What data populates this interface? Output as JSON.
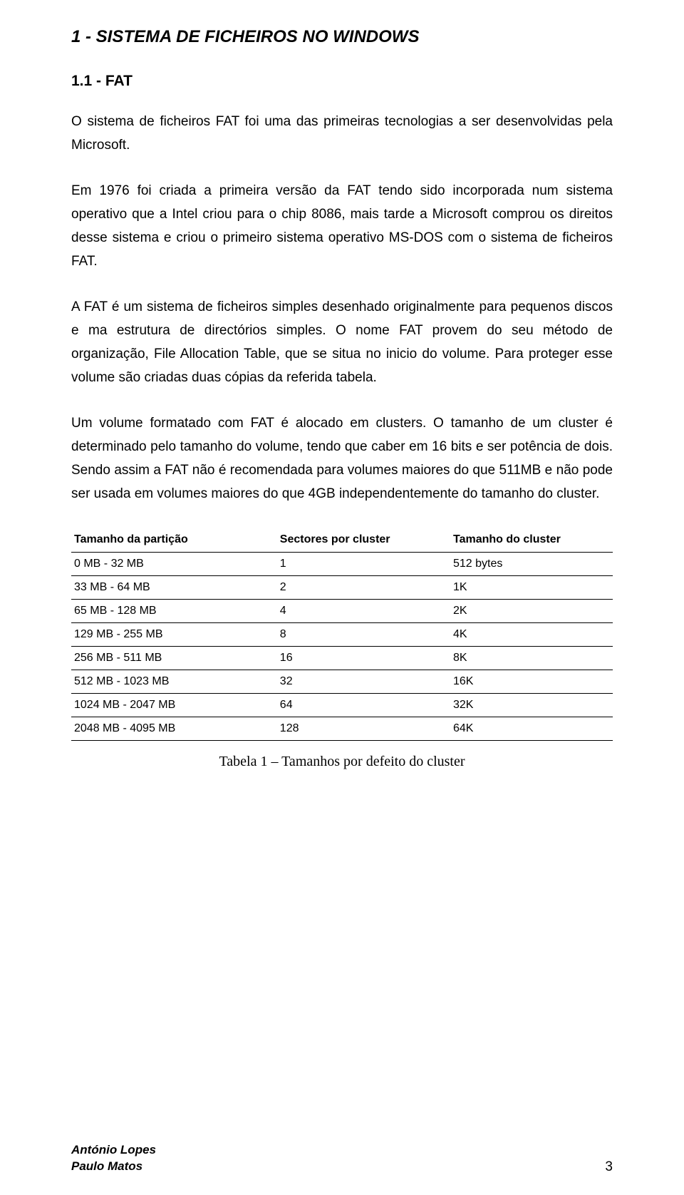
{
  "heading1": "1 - SISTEMA DE FICHEIROS NO WINDOWS",
  "heading2": "1.1 - FAT",
  "paragraphs": {
    "p1": "O sistema de ficheiros FAT foi uma das primeiras tecnologias a ser desenvolvidas pela Microsoft.",
    "p2": "Em 1976 foi criada a primeira versão da FAT tendo sido incorporada num sistema operativo que a Intel criou para o chip 8086, mais tarde a Microsoft comprou os direitos desse sistema e criou o primeiro sistema operativo MS-DOS com o sistema de ficheiros FAT.",
    "p3": "A FAT é um sistema de ficheiros simples desenhado originalmente para pequenos discos e ma estrutura de directórios simples. O nome FAT provem do seu método de organização, File Allocation Table, que se situa no inicio do volume. Para proteger esse volume são criadas duas cópias da referida tabela.",
    "p4": "Um volume formatado com FAT é alocado em clusters. O tamanho de um cluster é determinado pelo tamanho do volume, tendo que caber em 16 bits e ser potência de dois. Sendo assim a FAT não é recomendada para volumes maiores do que 511MB e não pode ser usada em volumes maiores do que 4GB independentemente do tamanho do cluster."
  },
  "table": {
    "headers": [
      "Tamanho da partição",
      "Sectores por cluster",
      "Tamanho do cluster"
    ],
    "rows": [
      [
        "0 MB - 32 MB",
        "1",
        "512 bytes"
      ],
      [
        "33 MB - 64 MB",
        "2",
        "1K"
      ],
      [
        "65 MB - 128 MB",
        "4",
        "2K"
      ],
      [
        "129 MB - 255 MB",
        "8",
        "4K"
      ],
      [
        "256 MB - 511 MB",
        "16",
        "8K"
      ],
      [
        "512 MB - 1023 MB",
        "32",
        "16K"
      ],
      [
        "1024 MB - 2047 MB",
        "64",
        "32K"
      ],
      [
        "2048 MB - 4095 MB",
        "128",
        "64K"
      ]
    ],
    "col_widths": [
      "38%",
      "32%",
      "30%"
    ],
    "caption": "Tabela 1 – Tamanhos por defeito do cluster"
  },
  "footer": {
    "author1": "António Lopes",
    "author2": "Paulo Matos",
    "page": "3"
  },
  "style": {
    "page_bg": "#ffffff",
    "text_color": "#000000",
    "h1_fontsize": 24,
    "h2_fontsize": 21,
    "body_fontsize": 19,
    "table_fontsize": 16,
    "caption_fontsize": 20,
    "footer_author_fontsize": 17,
    "page_num_fontsize": 19,
    "border_color": "#000000"
  }
}
